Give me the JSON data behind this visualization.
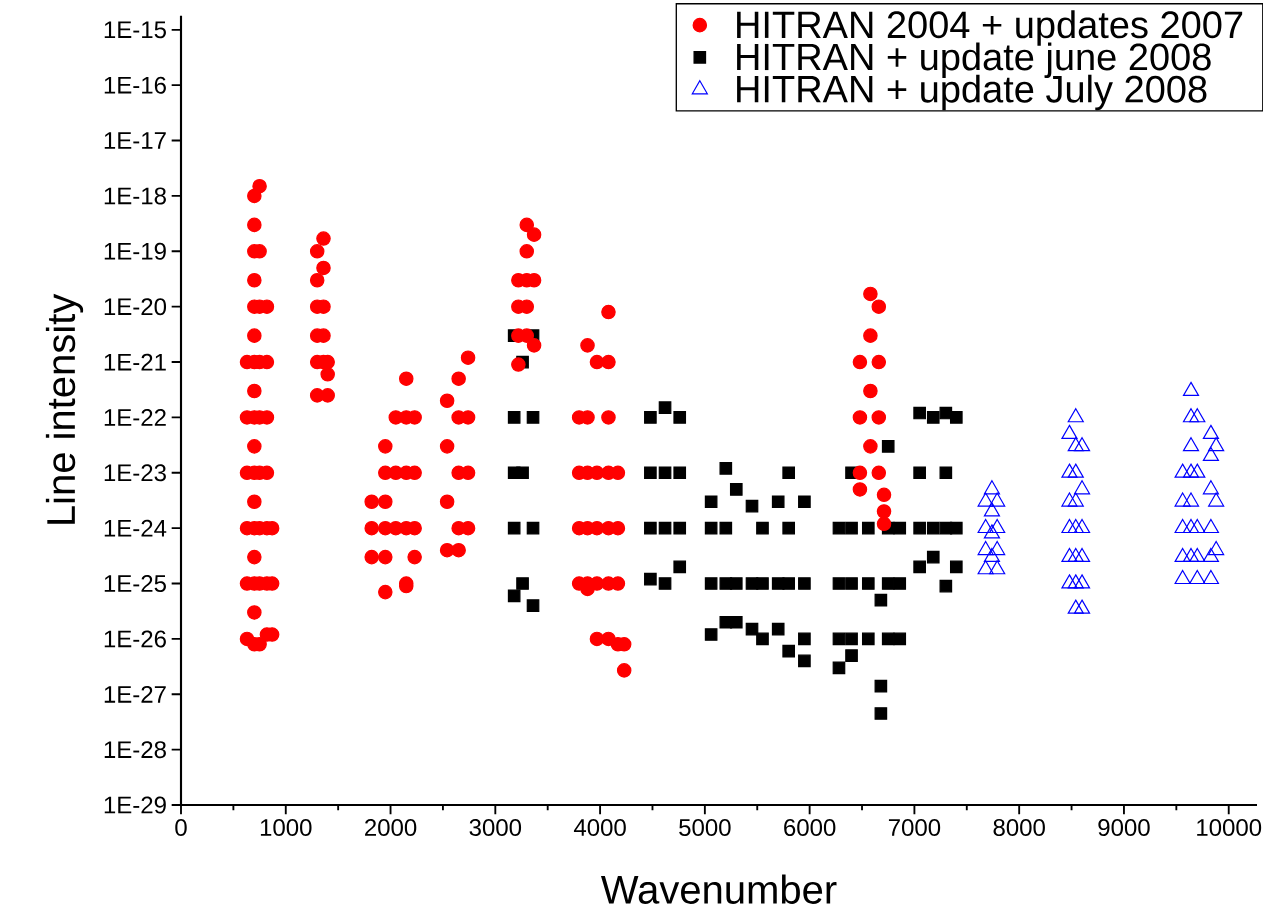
{
  "chart_data": {
    "type": "scatter",
    "xlabel": "Wavenumber",
    "ylabel": "Line intensity",
    "log": "y",
    "legend": "top right",
    "grid": false,
    "xlim": [
      0,
      10270
    ],
    "ylim": [
      1e-29,
      1.8e-15
    ],
    "xticks": [
      0,
      1000,
      2000,
      3000,
      4000,
      5000,
      6000,
      7000,
      8000,
      9000,
      10000
    ],
    "yticks": [
      {
        "value": 1e-29,
        "label": "1E-29"
      },
      {
        "value": 1e-28,
        "label": "1E-28"
      },
      {
        "value": 1e-27,
        "label": "1E-27"
      },
      {
        "value": 1e-26,
        "label": "1E-26"
      },
      {
        "value": 1e-25,
        "label": "1E-25"
      },
      {
        "value": 1e-24,
        "label": "1E-24"
      },
      {
        "value": 1e-23,
        "label": "1E-23"
      },
      {
        "value": 1e-22,
        "label": "1E-22"
      },
      {
        "value": 1e-21,
        "label": "1E-21"
      },
      {
        "value": 1e-20,
        "label": "1E-20"
      },
      {
        "value": 1e-19,
        "label": "1E-19"
      },
      {
        "value": 1e-18,
        "label": "1E-18"
      },
      {
        "value": 1e-17,
        "label": "1E-17"
      },
      {
        "value": 1e-16,
        "label": "1E-16"
      },
      {
        "value": 1e-15,
        "label": "1E-15"
      }
    ],
    "series": [
      {
        "name": "HITRAN 2004 + updates 2007",
        "color": "#ff0000",
        "marker": "circle",
        "x": [
          700,
          700,
          700,
          700,
          700,
          700,
          700,
          700,
          700,
          700,
          700,
          700,
          700,
          700,
          700,
          700,
          700,
          750,
          750,
          750,
          750,
          750,
          750,
          750,
          750,
          750,
          630,
          630,
          630,
          630,
          630,
          630,
          820,
          820,
          820,
          820,
          820,
          820,
          820,
          870,
          870,
          870,
          1300,
          1300,
          1300,
          1300,
          1300,
          1300,
          1360,
          1360,
          1360,
          1360,
          1360,
          1400,
          1400,
          1400,
          1820,
          1820,
          1820,
          1950,
          1950,
          1950,
          1950,
          1950,
          1950,
          2050,
          2050,
          2050,
          2150,
          2150,
          2150,
          2150,
          2150,
          2150,
          2230,
          2230,
          2230,
          2230,
          2540,
          2540,
          2540,
          2540,
          2650,
          2650,
          2650,
          2650,
          2650,
          2740,
          2740,
          2740,
          2740,
          3220,
          3220,
          3220,
          3220,
          3300,
          3300,
          3300,
          3300,
          3300,
          3370,
          3370,
          3370,
          3800,
          3800,
          3800,
          3800,
          3880,
          3880,
          3880,
          3880,
          3880,
          3880,
          3970,
          3970,
          3970,
          3970,
          3970,
          4080,
          4080,
          4080,
          4080,
          4080,
          4080,
          4080,
          4170,
          4170,
          4170,
          4170,
          4230,
          4230,
          6480,
          6480,
          6480,
          6480,
          6580,
          6580,
          6580,
          6580,
          6660,
          6660,
          6660,
          6660,
          6710,
          6710,
          6710
        ],
        "values": [
          8e-27,
          3e-26,
          1e-25,
          3e-25,
          1e-24,
          3e-24,
          1e-23,
          3e-23,
          1e-22,
          3e-22,
          1e-21,
          3e-21,
          1e-20,
          3e-20,
          1e-19,
          3e-19,
          1e-18,
          8e-27,
          1e-25,
          1e-24,
          1e-23,
          1e-22,
          1e-21,
          1e-20,
          1e-19,
          1.5e-18,
          1e-26,
          1e-25,
          1e-24,
          1e-23,
          1e-22,
          1e-21,
          1.2e-26,
          1e-25,
          1e-24,
          1e-23,
          1e-22,
          1e-21,
          1e-20,
          1.2e-26,
          1e-25,
          1e-24,
          2.5e-22,
          1e-21,
          3e-21,
          1e-20,
          3e-20,
          1e-19,
          1.7e-19,
          5e-20,
          1e-20,
          3e-21,
          1e-21,
          2.5e-22,
          6e-22,
          1e-21,
          3e-24,
          1e-24,
          3e-25,
          3e-23,
          1e-23,
          3e-24,
          1e-24,
          3e-25,
          7e-26,
          1e-24,
          1e-23,
          1e-22,
          5e-22,
          1e-22,
          1e-23,
          1e-24,
          1e-25,
          9e-26,
          1e-22,
          1e-23,
          1e-24,
          3e-25,
          4e-25,
          3e-24,
          3e-23,
          2e-22,
          5e-22,
          1e-22,
          1e-23,
          1e-24,
          4e-25,
          1.2e-21,
          1e-22,
          1e-23,
          1e-24,
          9e-22,
          3e-21,
          1e-20,
          3e-20,
          3e-19,
          1e-19,
          3e-20,
          1e-20,
          3e-21,
          2e-19,
          3e-20,
          2e-21,
          1e-25,
          1e-24,
          1e-23,
          1e-22,
          2e-21,
          1e-22,
          1e-23,
          1e-24,
          1e-25,
          8e-26,
          1e-21,
          1e-23,
          1e-24,
          1e-25,
          1e-26,
          8e-21,
          1e-21,
          1e-22,
          1e-23,
          1e-24,
          1e-25,
          1e-26,
          1e-23,
          1e-24,
          1e-25,
          8e-27,
          2.7e-27,
          8e-27,
          5e-24,
          1e-23,
          1e-22,
          1e-21,
          1.7e-20,
          3e-21,
          3e-22,
          3e-23,
          1e-20,
          1e-21,
          1e-22,
          1e-23,
          4e-24,
          2e-24,
          1.2e-24
        ]
      },
      {
        "name": "HITRAN + update june 2008",
        "color": "#000000",
        "marker": "square",
        "x": [
          3180,
          3180,
          3180,
          3180,
          3180,
          3260,
          3260,
          3260,
          3360,
          3360,
          3360,
          3360,
          4480,
          4480,
          4480,
          4480,
          4620,
          4620,
          4620,
          4620,
          4760,
          4760,
          4760,
          4760,
          5060,
          5060,
          5060,
          5060,
          5200,
          5200,
          5200,
          5200,
          5300,
          5300,
          5300,
          5450,
          5450,
          5450,
          5550,
          5550,
          5550,
          5700,
          5700,
          5700,
          5800,
          5800,
          5800,
          5800,
          5950,
          5950,
          5950,
          5950,
          6280,
          6280,
          6280,
          6280,
          6400,
          6400,
          6400,
          6400,
          6400,
          6560,
          6560,
          6560,
          6680,
          6680,
          6680,
          6750,
          6750,
          6750,
          6750,
          6860,
          6860,
          6860,
          7050,
          7050,
          7050,
          7050,
          7180,
          7180,
          7180,
          7300,
          7300,
          7300,
          7300,
          7400,
          7400,
          7400
        ],
        "values": [
          6e-26,
          1e-24,
          1e-23,
          1e-22,
          3e-21,
          1e-21,
          1e-23,
          1e-25,
          4e-26,
          1e-24,
          1e-22,
          3e-21,
          1.2e-25,
          1e-24,
          1e-23,
          1e-22,
          1.5e-22,
          1e-23,
          1e-24,
          1e-25,
          1e-22,
          1e-23,
          1e-24,
          2e-25,
          1.2e-26,
          1e-25,
          1e-24,
          3e-24,
          1.2e-23,
          1e-24,
          1e-25,
          2e-26,
          5e-24,
          1e-25,
          2e-26,
          2.5e-24,
          1e-25,
          1.5e-26,
          1e-24,
          1e-25,
          1e-26,
          3e-24,
          1e-25,
          1.5e-26,
          1e-23,
          1e-24,
          1e-25,
          6e-27,
          3e-24,
          1e-25,
          1e-26,
          4e-27,
          1e-24,
          1e-25,
          1e-26,
          3e-27,
          1e-23,
          1e-24,
          1e-25,
          1e-26,
          5e-27,
          1e-24,
          1e-25,
          1e-26,
          1.4e-27,
          4.5e-28,
          5e-26,
          3e-23,
          1e-24,
          1e-25,
          1e-26,
          1e-24,
          1e-25,
          1e-26,
          1.2e-22,
          1e-23,
          1e-24,
          2e-25,
          1e-22,
          1e-24,
          3e-25,
          1.2e-22,
          1e-23,
          1e-24,
          9e-26,
          1e-22,
          1e-24,
          2e-25
        ]
      },
      {
        "name": "HITRAN + update July 2008",
        "color": "#0000ff",
        "marker": "triangle",
        "x": [
          7680,
          7680,
          7680,
          7680,
          7740,
          7740,
          7740,
          7740,
          7790,
          7790,
          7790,
          7790,
          8480,
          8480,
          8480,
          8480,
          8480,
          8480,
          8540,
          8540,
          8540,
          8540,
          8540,
          8540,
          8540,
          8540,
          8600,
          8600,
          8600,
          8600,
          8600,
          8600,
          9560,
          9560,
          9560,
          9560,
          9560,
          9640,
          9640,
          9640,
          9640,
          9640,
          9640,
          9640,
          9700,
          9700,
          9700,
          9700,
          9700,
          9830,
          9830,
          9830,
          9830,
          9830,
          9830,
          9880,
          9880,
          9880
        ],
        "values": [
          3e-24,
          1e-24,
          4e-25,
          1.8e-25,
          5e-24,
          2e-24,
          8e-25,
          3e-25,
          3e-24,
          1e-24,
          4e-25,
          1.8e-25,
          5e-23,
          1e-23,
          3e-24,
          1e-24,
          3e-25,
          1e-25,
          1e-22,
          3e-23,
          1e-23,
          3e-24,
          1e-24,
          3e-25,
          1e-25,
          3.5e-26,
          3e-23,
          5e-24,
          1e-24,
          3e-25,
          1e-25,
          3.5e-26,
          1e-23,
          3e-24,
          1e-24,
          3e-25,
          1.2e-25,
          3e-22,
          1e-22,
          3e-23,
          1e-23,
          3e-24,
          1e-24,
          3e-25,
          1e-22,
          1e-23,
          1e-24,
          3e-25,
          1.2e-25,
          5e-23,
          2e-23,
          5e-24,
          1e-24,
          3e-25,
          1.2e-25,
          3e-23,
          3e-24,
          4e-25
        ]
      }
    ]
  }
}
